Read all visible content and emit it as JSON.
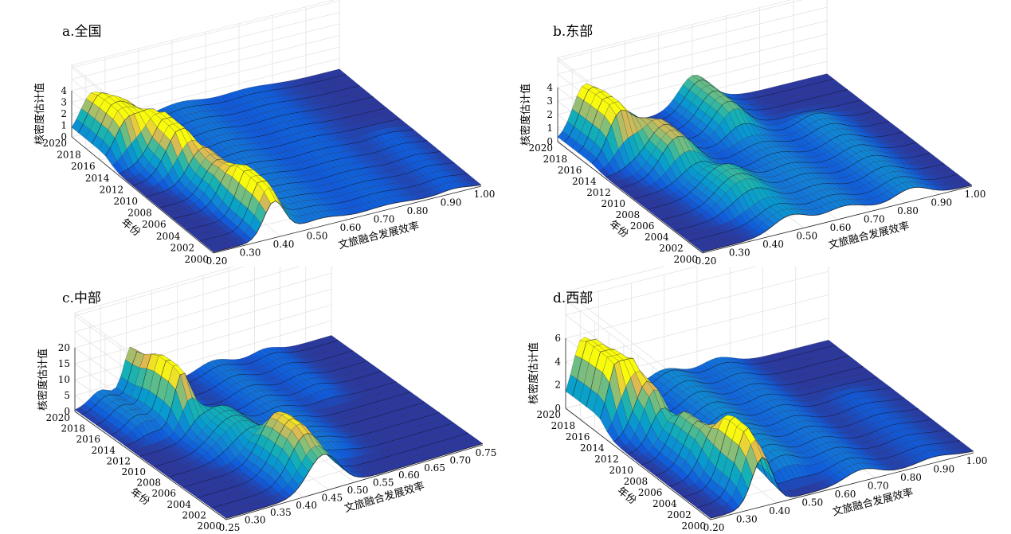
{
  "chart_data": [
    {
      "type": "surface",
      "title": "a.全国",
      "xlabel": "文旅融合发展效率",
      "ylabel": "年份",
      "zlabel": "核密度估计值",
      "x_ticks": [
        "0.20",
        "0.30",
        "0.40",
        "0.50",
        "0.60",
        "0.70",
        "0.80",
        "0.90",
        "1.00"
      ],
      "y_ticks": [
        "2000",
        "2002",
        "2004",
        "2006",
        "2008",
        "2010",
        "2012",
        "2014",
        "2016",
        "2018",
        "2020"
      ],
      "z_ticks": [
        "0",
        "1",
        "2",
        "3",
        "4"
      ],
      "xlim": [
        0.2,
        1.0
      ],
      "ylim": [
        2000,
        2020
      ],
      "zlim": [
        0,
        4
      ],
      "ridges": [
        {
          "center": 0.38,
          "sigma": 0.03,
          "years": [
            2000,
            2003
          ],
          "height": 2.7
        },
        {
          "center": 0.4,
          "sigma": 0.04,
          "years": [
            2003,
            2008
          ],
          "height": 1.5
        },
        {
          "center": 0.36,
          "sigma": 0.035,
          "years": [
            2008,
            2013
          ],
          "height": 1.8
        },
        {
          "center": 0.33,
          "sigma": 0.04,
          "years": [
            2013,
            2017
          ],
          "height": 2.6
        },
        {
          "center": 0.26,
          "sigma": 0.035,
          "years": [
            2017,
            2020
          ],
          "height": 3.2
        },
        {
          "center": 0.52,
          "sigma": 0.06,
          "years": [
            2000,
            2020
          ],
          "height": 0.6
        },
        {
          "center": 0.72,
          "sigma": 0.07,
          "years": [
            2000,
            2020
          ],
          "height": 0.35
        },
        {
          "center": 0.92,
          "sigma": 0.04,
          "years": [
            2000,
            2008
          ],
          "height": 0.3
        }
      ]
    },
    {
      "type": "surface",
      "title": "b.东部",
      "xlabel": "文旅融合发展效率",
      "ylabel": "年份",
      "zlabel": "核密度估计值",
      "x_ticks": [
        "0.20",
        "0.30",
        "0.40",
        "0.50",
        "0.60",
        "0.70",
        "0.80",
        "0.90",
        "1.00"
      ],
      "y_ticks": [
        "2000",
        "2002",
        "2004",
        "2006",
        "2008",
        "2010",
        "2012",
        "2014",
        "2016",
        "2018",
        "2020"
      ],
      "z_ticks": [
        "0",
        "1",
        "2",
        "3",
        "4"
      ],
      "xlim": [
        0.2,
        1.0
      ],
      "ylim": [
        2000,
        2020
      ],
      "zlim": [
        0,
        4
      ],
      "ridges": [
        {
          "center": 0.46,
          "sigma": 0.05,
          "years": [
            2000,
            2006
          ],
          "height": 1.1
        },
        {
          "center": 0.4,
          "sigma": 0.05,
          "years": [
            2006,
            2013
          ],
          "height": 1.3
        },
        {
          "center": 0.36,
          "sigma": 0.045,
          "years": [
            2013,
            2017
          ],
          "height": 1.8
        },
        {
          "center": 0.28,
          "sigma": 0.035,
          "years": [
            2017,
            2020
          ],
          "height": 3.6
        },
        {
          "center": 0.62,
          "sigma": 0.06,
          "years": [
            2000,
            2020
          ],
          "height": 0.8
        },
        {
          "center": 0.82,
          "sigma": 0.05,
          "years": [
            2000,
            2012
          ],
          "height": 0.9
        },
        {
          "center": 0.6,
          "sigma": 0.04,
          "years": [
            2016,
            2020
          ],
          "height": 1.6
        }
      ]
    },
    {
      "type": "surface",
      "title": "c.中部",
      "xlabel": "文旅融合发展效率",
      "ylabel": "年份",
      "zlabel": "核密度估计值",
      "x_ticks": [
        "0.25",
        "0.30",
        "0.35",
        "0.40",
        "0.45",
        "0.50",
        "0.55",
        "0.60",
        "0.65",
        "0.70",
        "0.75"
      ],
      "y_ticks": [
        "2000",
        "2002",
        "2004",
        "2006",
        "2008",
        "2010",
        "2012",
        "2014",
        "2016",
        "2018",
        "2020"
      ],
      "z_ticks": [
        "0",
        "5",
        "10",
        "15",
        "20"
      ],
      "xlim": [
        0.25,
        0.75
      ],
      "ylim": [
        2000,
        2020
      ],
      "zlim": [
        0,
        20
      ],
      "ridges": [
        {
          "center": 0.44,
          "sigma": 0.03,
          "years": [
            2000,
            2004
          ],
          "height": 11
        },
        {
          "center": 0.42,
          "sigma": 0.03,
          "years": [
            2004,
            2010
          ],
          "height": 6
        },
        {
          "center": 0.38,
          "sigma": 0.03,
          "years": [
            2010,
            2015
          ],
          "height": 5
        },
        {
          "center": 0.36,
          "sigma": 0.015,
          "years": [
            2015,
            2019
          ],
          "height": 15
        },
        {
          "center": 0.3,
          "sigma": 0.02,
          "years": [
            2016,
            2020
          ],
          "height": 4
        },
        {
          "center": 0.52,
          "sigma": 0.03,
          "years": [
            2006,
            2020
          ],
          "height": 3
        },
        {
          "center": 0.62,
          "sigma": 0.025,
          "years": [
            2014,
            2020
          ],
          "height": 2
        }
      ]
    },
    {
      "type": "surface",
      "title": "d.西部",
      "xlabel": "文旅融合发展效率",
      "ylabel": "年份",
      "zlabel": "核密度估计值",
      "x_ticks": [
        "0.20",
        "0.30",
        "0.40",
        "0.50",
        "0.60",
        "0.70",
        "0.80",
        "0.90",
        "1.00"
      ],
      "y_ticks": [
        "2000",
        "2002",
        "2004",
        "2006",
        "2008",
        "2010",
        "2012",
        "2014",
        "2016",
        "2018",
        "2020"
      ],
      "z_ticks": [
        "0",
        "2",
        "4",
        "6"
      ],
      "xlim": [
        0.2,
        1.0
      ],
      "ylim": [
        2000,
        2020
      ],
      "zlim": [
        0,
        6
      ],
      "ridges": [
        {
          "center": 0.36,
          "sigma": 0.03,
          "years": [
            2000,
            2003
          ],
          "height": 3.5
        },
        {
          "center": 0.34,
          "sigma": 0.035,
          "years": [
            2003,
            2008
          ],
          "height": 2.5
        },
        {
          "center": 0.31,
          "sigma": 0.035,
          "years": [
            2008,
            2014
          ],
          "height": 1.6
        },
        {
          "center": 0.3,
          "sigma": 0.035,
          "years": [
            2014,
            2017
          ],
          "height": 3.0
        },
        {
          "center": 0.25,
          "sigma": 0.03,
          "years": [
            2017,
            2020
          ],
          "height": 5.3
        },
        {
          "center": 0.5,
          "sigma": 0.05,
          "years": [
            2005,
            2018
          ],
          "height": 1.4
        },
        {
          "center": 0.66,
          "sigma": 0.05,
          "years": [
            2000,
            2020
          ],
          "height": 0.9
        },
        {
          "center": 0.88,
          "sigma": 0.05,
          "years": [
            2000,
            2010
          ],
          "height": 0.4
        }
      ]
    }
  ]
}
